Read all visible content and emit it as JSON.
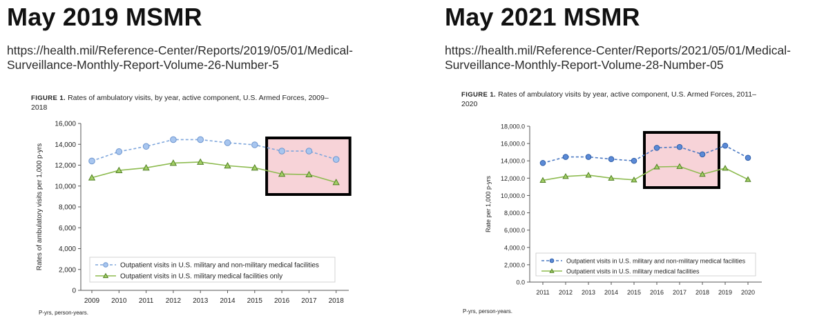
{
  "left_panel": {
    "heading": "May 2019 MSMR",
    "url_line1": "https://health.mil/Reference-Center/Reports/2019/05/01/Medical-",
    "url_line2": "Surveillance-Monthly-Report-Volume-26-Number-5",
    "figure_label": "FIGURE 1.",
    "caption_line1": "Rates of ambulatory visits, by year, active component, U.S. Armed Forces, 2009–",
    "caption_line2": "2018",
    "footnote": "P-yrs, person-years."
  },
  "right_panel": {
    "heading": "May 2021 MSMR",
    "url_line1": "https://health.mil/Reference-Center/Reports/2021/05/01/Medical-",
    "url_line2": "Surveillance-Monthly-Report-Volume-28-Number-05",
    "figure_label": "FIGURE 1.",
    "caption_line1": "Rates of ambulatory visits by year, active component, U.S. Armed Forces, 2011–",
    "caption_line2": "2020",
    "footnote": "P-yrs, person-years."
  },
  "colors": {
    "blue_series": "#7ea6dc",
    "blue_series_dark": "#4a78c2",
    "green_series": "#8dbb4f",
    "highlight_fill": "#f7d3d8",
    "highlight_border": "#000000"
  },
  "chart_data": [
    {
      "type": "line",
      "categories": [
        "2009",
        "2010",
        "2011",
        "2012",
        "2013",
        "2014",
        "2015",
        "2016",
        "2017",
        "2018"
      ],
      "ylabel": "Rates of ambulatory visits per 1,000 p-yrs",
      "ylim": [
        0,
        16000
      ],
      "yticks": [
        "0",
        "2,000",
        "4,000",
        "6,000",
        "8,000",
        "10,000",
        "12,000",
        "14,000",
        "16,000"
      ],
      "legend_placement": "bottom-left",
      "highlight_range": [
        "2016",
        "2018"
      ],
      "series": [
        {
          "name": "Outpatient visits in U.S. military and non-military medical facilities",
          "values": [
            12400,
            13300,
            13800,
            14450,
            14450,
            14150,
            13950,
            13350,
            13350,
            12550
          ],
          "style": "dashed",
          "marker": "circle"
        },
        {
          "name": "Outpatient visits in U.S. military medical facilities only",
          "values": [
            10800,
            11500,
            11750,
            12200,
            12300,
            11950,
            11750,
            11150,
            11100,
            10350
          ],
          "style": "solid",
          "marker": "triangle"
        }
      ]
    },
    {
      "type": "line",
      "categories": [
        "2011",
        "2012",
        "2013",
        "2014",
        "2015",
        "2016",
        "2017",
        "2018",
        "2019",
        "2020"
      ],
      "ylabel": "Rate per 1,000 p-yrs",
      "ylim": [
        0,
        18000
      ],
      "yticks": [
        "0.0",
        "2,000.0",
        "4,000.0",
        "6,000.0",
        "8,000.0",
        "10,000.0",
        "12,000.0",
        "14,000.0",
        "16,000.0",
        "18,000.0"
      ],
      "legend_placement": "bottom-left",
      "highlight_range": [
        "2016",
        "2018"
      ],
      "series": [
        {
          "name": "Outpatient visits in U.S. military and non-military medical facilities",
          "values": [
            13750,
            14450,
            14450,
            14200,
            14000,
            15500,
            15600,
            14750,
            15750,
            14350
          ],
          "style": "dashed",
          "marker": "circle"
        },
        {
          "name": "Outpatient visits in U.S. military medical facilities",
          "values": [
            11750,
            12200,
            12350,
            12000,
            11800,
            13300,
            13350,
            12450,
            13150,
            11850
          ],
          "style": "solid",
          "marker": "triangle"
        }
      ]
    }
  ]
}
